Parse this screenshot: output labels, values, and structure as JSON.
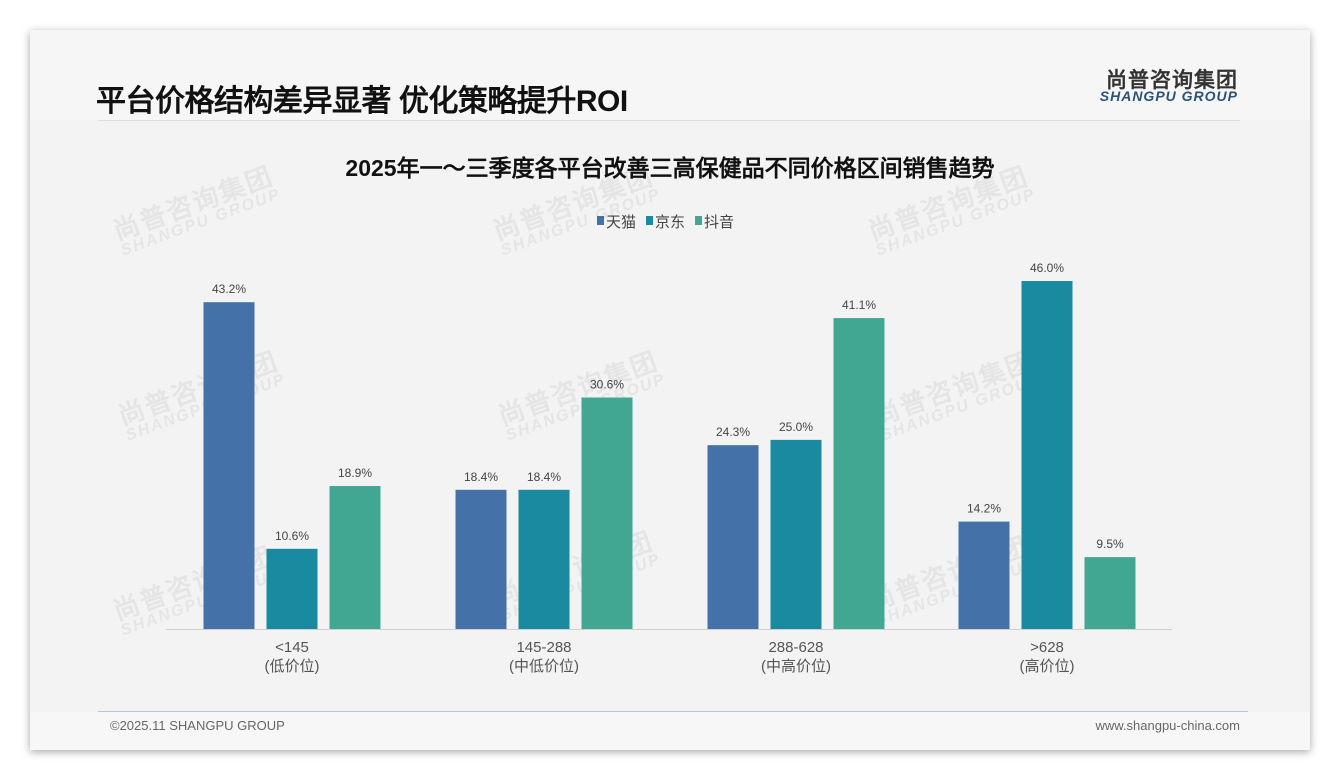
{
  "slide": {
    "title": "平台价格结构差异显著 优化策略提升ROI",
    "logo_cn": "尚普咨询集团",
    "logo_en": "SHANGPU GROUP",
    "copyright": "©2025.11 SHANGPU GROUP",
    "website": "www.shangpu-china.com",
    "watermark_cn": "尚普咨询集团",
    "watermark_en": "SHANGPU GROUP"
  },
  "chart_data": {
    "type": "bar",
    "title": "2025年一～三季度各平台改善三高保健品不同价格区间销售趋势",
    "categories": [
      "<145",
      "145-288",
      "288-628",
      ">628"
    ],
    "category_sublabels": [
      "(低价位)",
      "(中低价位)",
      "(中高价位)",
      "(高价位)"
    ],
    "series": [
      {
        "name": "天猫",
        "color": "#4472a8",
        "values": [
          43.2,
          18.4,
          24.3,
          14.2
        ]
      },
      {
        "name": "京东",
        "color": "#1a8aa0",
        "values": [
          10.6,
          18.4,
          25.0,
          46.0
        ]
      },
      {
        "name": "抖音",
        "color": "#41a793",
        "values": [
          18.9,
          30.6,
          41.1,
          9.5
        ]
      }
    ],
    "value_suffix": "%",
    "ylim": [
      0,
      46
    ],
    "grid": false,
    "legend": "top-center",
    "xlabel": "",
    "ylabel": ""
  }
}
